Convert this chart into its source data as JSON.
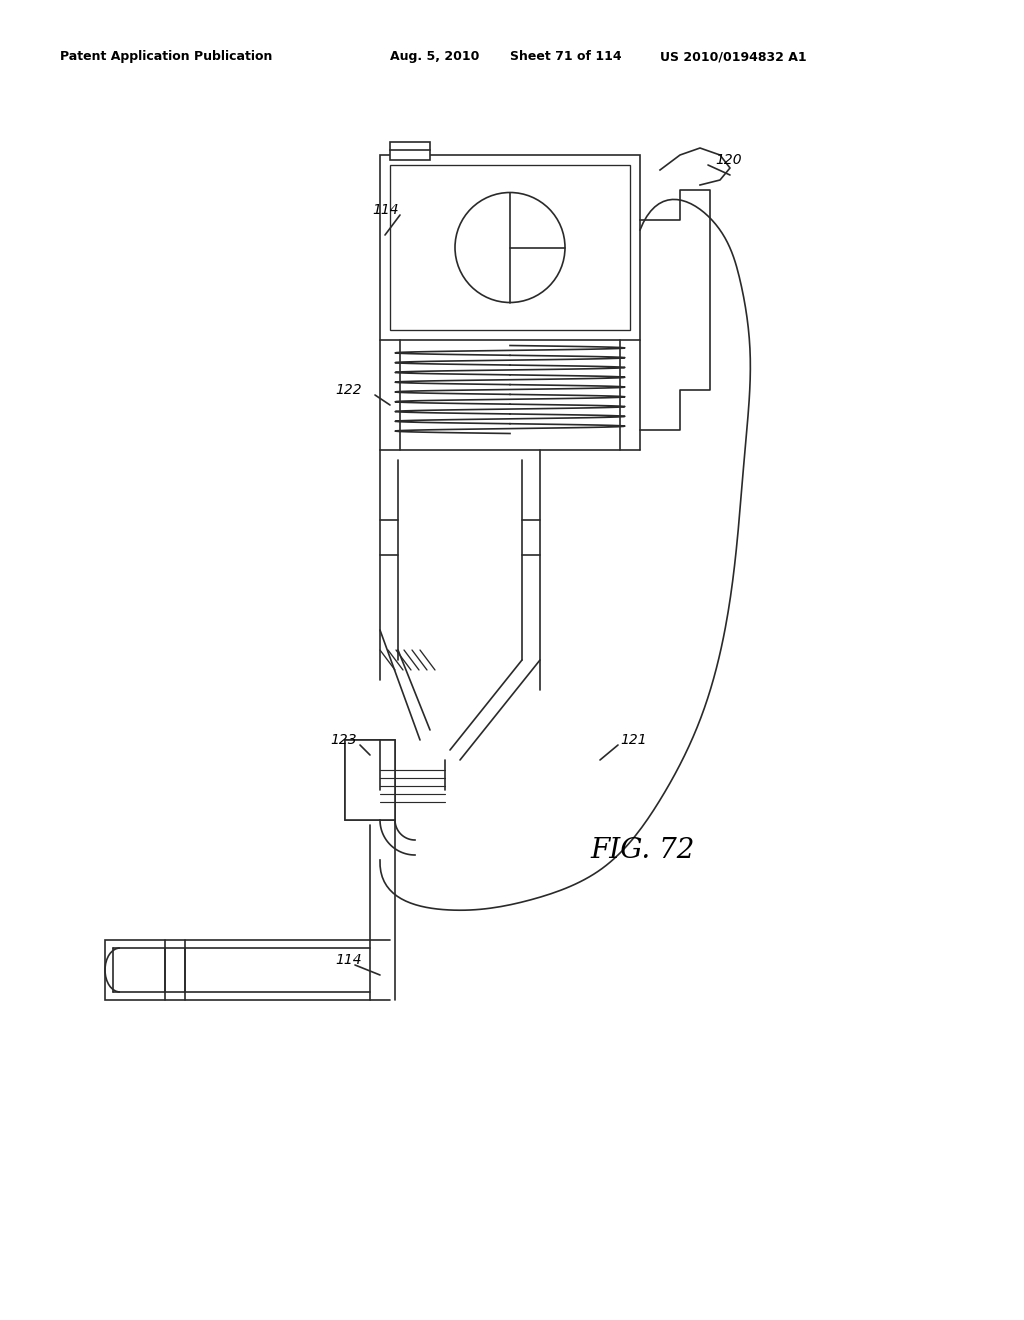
{
  "background_color": "#ffffff",
  "header_text": "Patent Application Publication",
  "header_date": "Aug. 5, 2010",
  "header_sheet": "Sheet 71 of 114",
  "header_patent": "US 2010/0194832 A1",
  "fig_label": "FIG. 72",
  "labels": {
    "114_top": "114",
    "114_bottom": "114",
    "120": "120",
    "121": "121",
    "122": "122",
    "123": "123"
  },
  "line_color": "#2a2a2a",
  "line_width": 1.2
}
